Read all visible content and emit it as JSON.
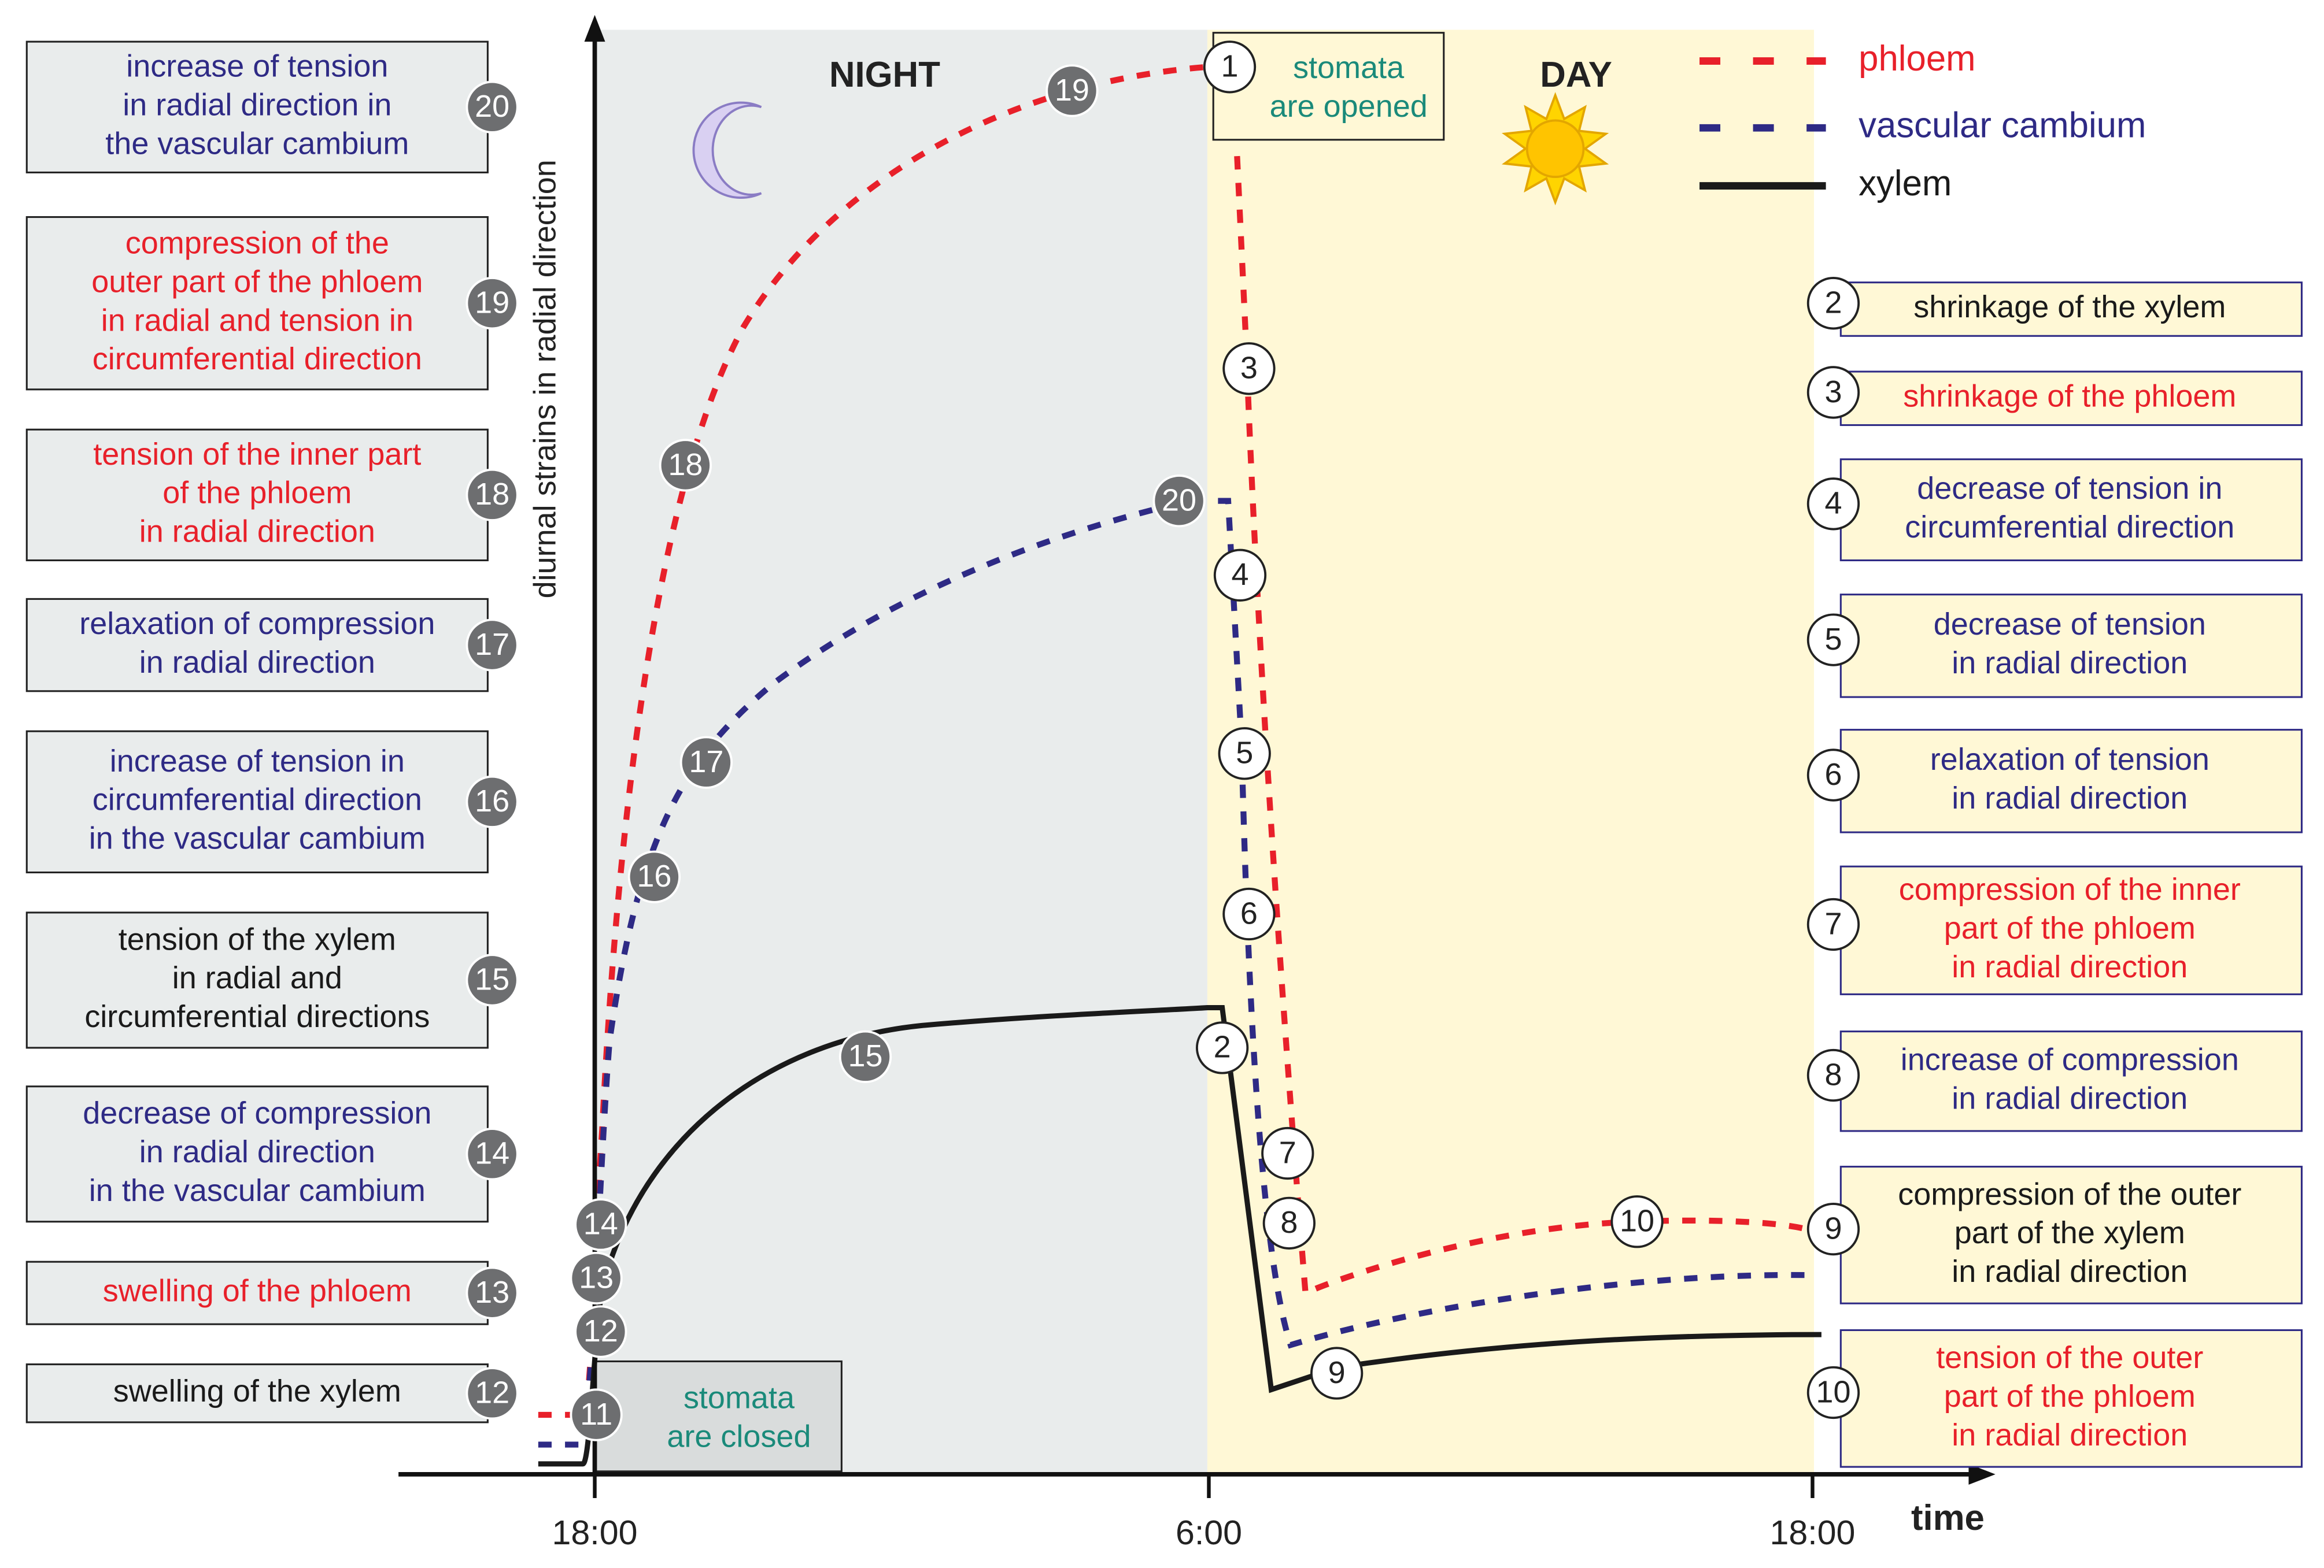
{
  "axis": {
    "y_label": "diurnal strains in radial direction",
    "x_label": "time",
    "x_ticks": [
      "18:00",
      "6:00",
      "18:00"
    ]
  },
  "periods": {
    "night": "NIGHT",
    "day": "DAY"
  },
  "notes": {
    "opened": [
      "stomata",
      "are opened"
    ],
    "closed": [
      "stomata",
      "are closed"
    ],
    "opened_marker": "1",
    "closed_marker": "11"
  },
  "legend": [
    {
      "name": "phloem",
      "color": "#e8202a",
      "dashed": true
    },
    {
      "name": "vascular cambium",
      "color": "#2e2a85",
      "dashed": true
    },
    {
      "name": "xylem",
      "color": "#1a1a1a",
      "dashed": false
    }
  ],
  "left_labels": [
    {
      "number": "20",
      "color": "#2e2a85",
      "lines": [
        "increase of tension",
        "in radial direction in",
        "the vascular cambium"
      ]
    },
    {
      "number": "19",
      "color": "#e8202a",
      "lines": [
        "compression of the",
        "outer part of the phloem",
        "in radial and tension in",
        "circumferential direction"
      ]
    },
    {
      "number": "18",
      "color": "#e8202a",
      "lines": [
        "tension of the inner part",
        "of the phloem",
        "in radial direction"
      ]
    },
    {
      "number": "17",
      "color": "#2e2a85",
      "lines": [
        "relaxation of compression",
        "in radial direction"
      ]
    },
    {
      "number": "16",
      "color": "#2e2a85",
      "lines": [
        "increase of tension in",
        "circumferential direction",
        "in the vascular cambium"
      ]
    },
    {
      "number": "15",
      "color": "#1a1a1a",
      "lines": [
        "tension of the xylem",
        "in radial and",
        "circumferential directions"
      ]
    },
    {
      "number": "14",
      "color": "#2e2a85",
      "lines": [
        "decrease of compression",
        "in radial direction",
        "in the vascular cambium"
      ]
    },
    {
      "number": "13",
      "color": "#e8202a",
      "lines": [
        "swelling of the phloem"
      ]
    },
    {
      "number": "12",
      "color": "#1a1a1a",
      "lines": [
        "swelling of the xylem"
      ]
    }
  ],
  "right_labels": [
    {
      "number": "2",
      "color": "#1a1a1a",
      "lines": [
        "shrinkage of the xylem"
      ]
    },
    {
      "number": "3",
      "color": "#e8202a",
      "lines": [
        "shrinkage of the phloem"
      ]
    },
    {
      "number": "4",
      "color": "#2e2a85",
      "lines": [
        "decrease of tension in",
        "circumferential direction"
      ]
    },
    {
      "number": "5",
      "color": "#2e2a85",
      "lines": [
        "decrease of tension",
        "in radial direction"
      ]
    },
    {
      "number": "6",
      "color": "#2e2a85",
      "lines": [
        "relaxation of tension",
        "in radial direction"
      ]
    },
    {
      "number": "7",
      "color": "#e8202a",
      "lines": [
        "compression of the inner",
        "part of the phloem",
        "in radial direction"
      ]
    },
    {
      "number": "8",
      "color": "#2e2a85",
      "lines": [
        "increase of compression",
        "in radial direction"
      ]
    },
    {
      "number": "9",
      "color": "#1a1a1a",
      "lines": [
        "compression of the outer",
        "part of the xylem",
        "in radial direction"
      ]
    },
    {
      "number": "10",
      "color": "#e8202a",
      "lines": [
        "tension of the outer",
        "part of the phloem",
        "in radial direction"
      ]
    }
  ],
  "curve_markers": [
    {
      "label": "19",
      "style": "filled"
    },
    {
      "label": "18",
      "style": "filled"
    },
    {
      "label": "20",
      "style": "filled"
    },
    {
      "label": "17",
      "style": "filled"
    },
    {
      "label": "16",
      "style": "filled"
    },
    {
      "label": "15",
      "style": "filled"
    },
    {
      "label": "14",
      "style": "filled"
    },
    {
      "label": "13",
      "style": "filled"
    },
    {
      "label": "12",
      "style": "filled"
    },
    {
      "label": "3",
      "style": "open"
    },
    {
      "label": "4",
      "style": "open"
    },
    {
      "label": "5",
      "style": "open"
    },
    {
      "label": "6",
      "style": "open"
    },
    {
      "label": "2",
      "style": "open"
    },
    {
      "label": "7",
      "style": "open"
    },
    {
      "label": "8",
      "style": "open"
    },
    {
      "label": "9",
      "style": "open"
    },
    {
      "label": "10",
      "style": "open"
    }
  ]
}
